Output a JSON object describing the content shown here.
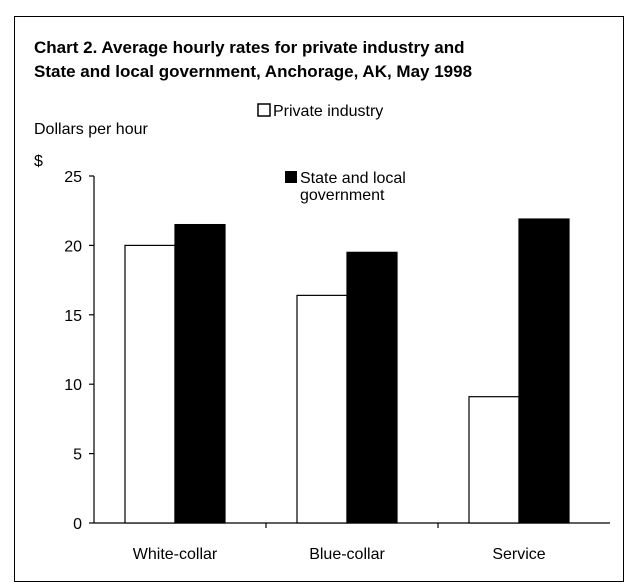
{
  "chart_data": {
    "type": "bar",
    "title_lines": [
      "Chart 2. Average hourly rates for private industry and",
      "State and local government, Anchorage, AK, May 1998"
    ],
    "ylabel": "Dollars per hour",
    "yunit": "$",
    "ylim": [
      0,
      25
    ],
    "yticks": [
      0,
      5,
      10,
      15,
      20,
      25
    ],
    "categories": [
      "White-collar",
      "Blue-collar",
      "Service"
    ],
    "series": [
      {
        "name": "Private industry",
        "values": [
          20.0,
          16.4,
          9.1
        ],
        "fill": "#ffffff"
      },
      {
        "name_lines": [
          "State and local",
          "government"
        ],
        "values": [
          21.5,
          19.5,
          21.9
        ],
        "fill": "#000000"
      }
    ],
    "legend_position": "top-right",
    "grid": false
  }
}
